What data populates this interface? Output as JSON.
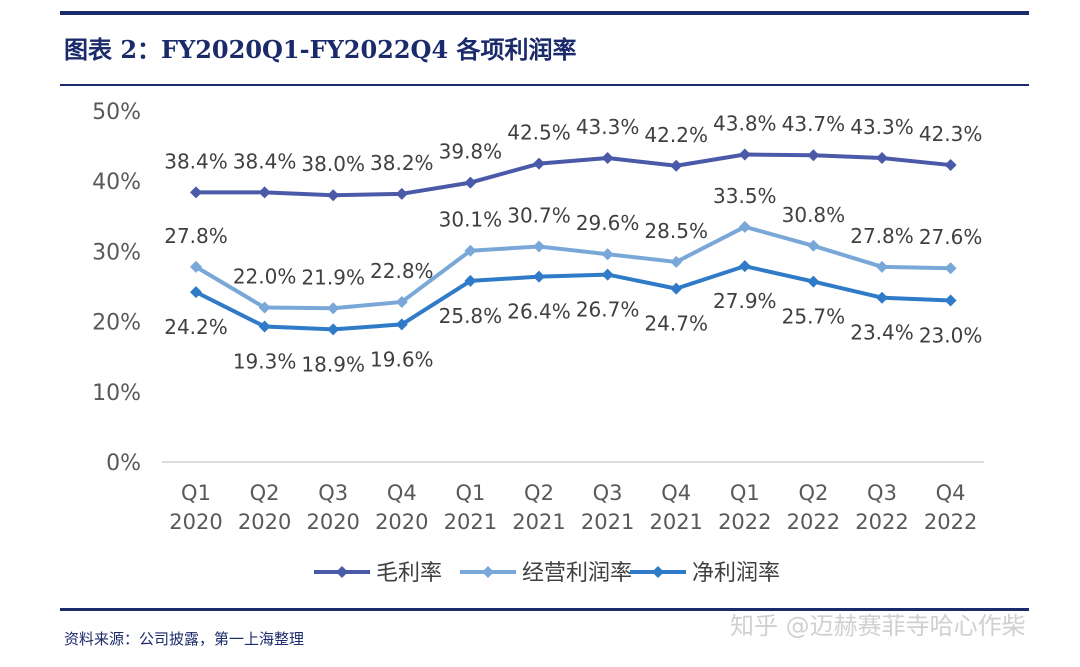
{
  "title": "图表 2：FY2020Q1-FY2022Q4 各项利润率",
  "source": "资料来源：公司披露，第一上海整理",
  "watermark": "知乎 @迈赫赛菲寺哈心作柴",
  "chart_data": {
    "type": "line",
    "categories": [
      [
        "Q1",
        "2020"
      ],
      [
        "Q2",
        "2020"
      ],
      [
        "Q3",
        "2020"
      ],
      [
        "Q4",
        "2020"
      ],
      [
        "Q1",
        "2021"
      ],
      [
        "Q2",
        "2021"
      ],
      [
        "Q3",
        "2021"
      ],
      [
        "Q4",
        "2021"
      ],
      [
        "Q1",
        "2022"
      ],
      [
        "Q2",
        "2022"
      ],
      [
        "Q3",
        "2022"
      ],
      [
        "Q4",
        "2022"
      ]
    ],
    "ylim": [
      0,
      50
    ],
    "yticks": [
      0,
      10,
      20,
      30,
      40,
      50
    ],
    "ytick_labels": [
      "0%",
      "10%",
      "20%",
      "30%",
      "40%",
      "50%"
    ],
    "grid": false,
    "legend_position": "bottom",
    "series": [
      {
        "name": "毛利率",
        "color": "#4a5aa8",
        "values": [
          38.4,
          38.4,
          38.0,
          38.2,
          39.8,
          42.5,
          43.3,
          42.2,
          43.8,
          43.7,
          43.3,
          42.3
        ],
        "labels": [
          "38.4%",
          "38.4%",
          "38.0%",
          "38.2%",
          "39.8%",
          "42.5%",
          "43.3%",
          "42.2%",
          "43.8%",
          "43.7%",
          "43.3%",
          "42.3%"
        ],
        "label_side": "above"
      },
      {
        "name": "经营利润率",
        "color": "#79a7d8",
        "values": [
          27.8,
          22.0,
          21.9,
          22.8,
          30.1,
          30.7,
          29.6,
          28.5,
          33.5,
          30.8,
          27.8,
          27.6
        ],
        "labels": [
          "27.8%",
          "22.0%",
          "21.9%",
          "22.8%",
          "30.1%",
          "30.7%",
          "29.6%",
          "28.5%",
          "33.5%",
          "30.8%",
          "27.8%",
          "27.6%"
        ],
        "label_side": "above"
      },
      {
        "name": "净利润率",
        "color": "#2f7bc8",
        "values": [
          24.2,
          19.3,
          18.9,
          19.6,
          25.8,
          26.4,
          26.7,
          24.7,
          27.9,
          25.7,
          23.4,
          23.0
        ],
        "labels": [
          "24.2%",
          "19.3%",
          "18.9%",
          "19.6%",
          "25.8%",
          "26.4%",
          "26.7%",
          "24.7%",
          "27.9%",
          "25.7%",
          "23.4%",
          "23.0%"
        ],
        "label_side": "below"
      }
    ]
  }
}
